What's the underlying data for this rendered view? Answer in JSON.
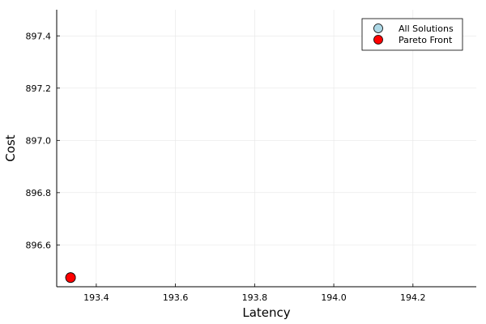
{
  "chart_data": {
    "type": "scatter",
    "title": "",
    "xlabel": "Latency",
    "ylabel": "Cost",
    "xlim": [
      193.3,
      194.36
    ],
    "ylim": [
      896.44,
      897.5
    ],
    "xticks": [
      193.4,
      193.6,
      193.8,
      194.0,
      194.2
    ],
    "xtick_labels": [
      "193.4",
      "193.6",
      "193.8",
      "194.0",
      "194.2"
    ],
    "yticks": [
      896.6,
      896.8,
      897.0,
      897.2,
      897.4
    ],
    "ytick_labels": [
      "896.6",
      "896.8",
      "897.0",
      "897.2",
      "897.4"
    ],
    "grid": true,
    "legend_position": "top-right",
    "series": [
      {
        "name": "All Solutions",
        "color": "#add8e6",
        "points": [
          {
            "x": 193.335,
            "y": 896.475
          }
        ]
      },
      {
        "name": "Pareto Front",
        "color": "#ff0000",
        "points": [
          {
            "x": 193.335,
            "y": 896.475
          }
        ]
      }
    ]
  }
}
